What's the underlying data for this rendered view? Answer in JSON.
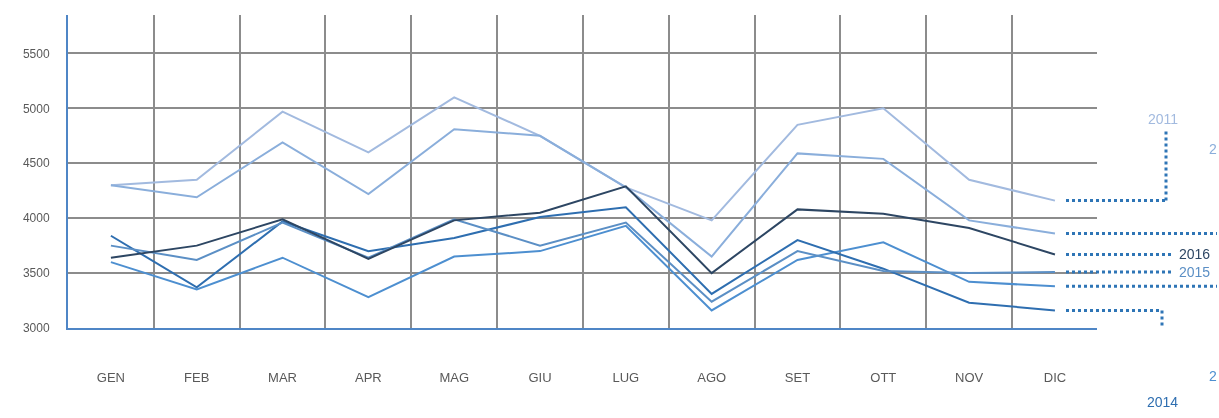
{
  "chart_data": {
    "type": "line",
    "categories": [
      "GEN",
      "FEB",
      "MAR",
      "APR",
      "MAG",
      "GIU",
      "LUG",
      "AGO",
      "SET",
      "OTT",
      "NOV",
      "DIC"
    ],
    "series": [
      {
        "name": "2011",
        "color": "#a2badf",
        "values": [
          4300,
          4350,
          4970,
          4600,
          5100,
          4750,
          4280,
          3980,
          4850,
          5000,
          4350,
          4160
        ]
      },
      {
        "name": "2",
        "color": "#8aaedb",
        "values": [
          4300,
          4190,
          4690,
          4220,
          4810,
          4750,
          4280,
          3650,
          4590,
          4540,
          3980,
          3860
        ]
      },
      {
        "name": "2",
        "color": "#4d8fd0",
        "values": [
          3600,
          3350,
          3640,
          3280,
          3650,
          3700,
          3930,
          3160,
          3620,
          3780,
          3420,
          3380
        ]
      },
      {
        "name": "2014",
        "color": "#2e6eb0",
        "values": [
          3840,
          3370,
          3970,
          3700,
          3820,
          4010,
          4100,
          3310,
          3800,
          3540,
          3230,
          3160
        ]
      },
      {
        "name": "2015",
        "color": "#5b8fc5",
        "values": [
          3750,
          3620,
          3960,
          3640,
          3990,
          3750,
          3960,
          3240,
          3700,
          3520,
          3500,
          3510
        ]
      },
      {
        "name": "2016",
        "color": "#2d4663",
        "values": [
          3640,
          3750,
          3990,
          3630,
          3980,
          4050,
          4290,
          3500,
          4080,
          4040,
          3910,
          3670
        ]
      }
    ],
    "ylim": [
      3000,
      5850
    ],
    "yticks": [
      3000,
      3500,
      4000,
      4500,
      5000,
      5500
    ],
    "grid": true
  }
}
